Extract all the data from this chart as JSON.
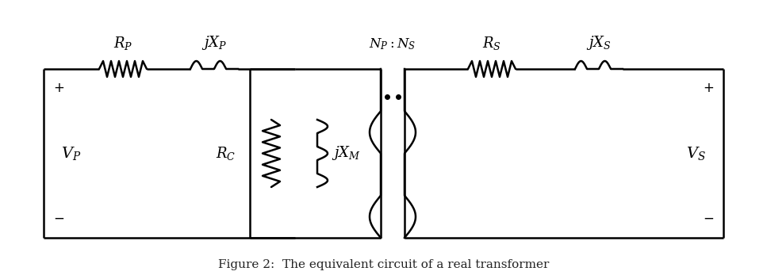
{
  "figure_caption": "Figure 2:  The equivalent circuit of a real transformer",
  "background_color": "#ffffff",
  "line_color": "#000000",
  "figsize": [
    9.67,
    3.52
  ],
  "dpi": 100,
  "font_size_label": 12,
  "font_size_caption": 11,
  "lw": 1.8
}
